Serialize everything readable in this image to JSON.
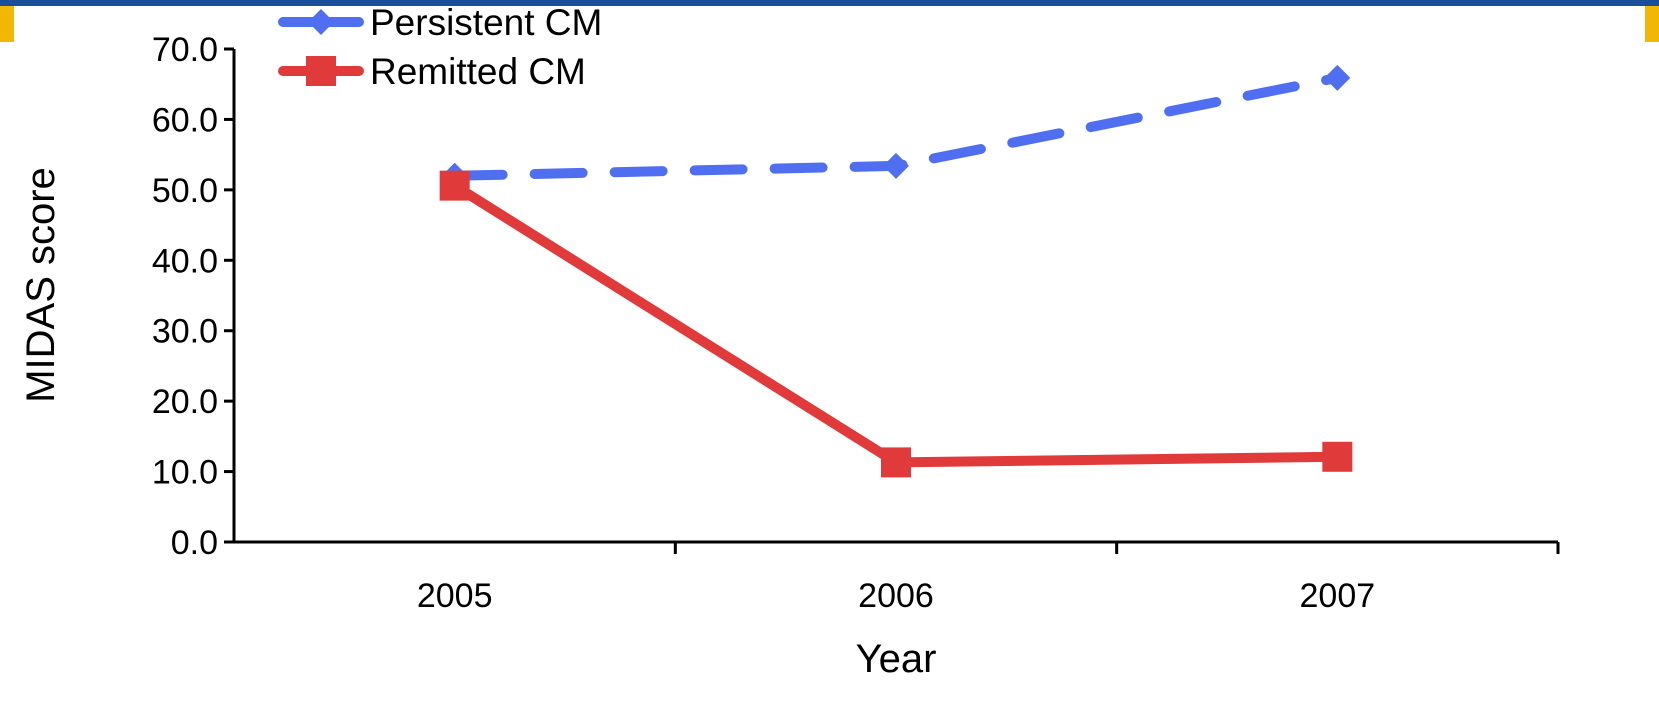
{
  "colors": {
    "top_bar": "#1b4e9a",
    "corner_accent": "#f2b705"
  },
  "chart_data": {
    "type": "line",
    "title": "",
    "xlabel": "Year",
    "ylabel": "MIDAS score",
    "categories": [
      "2005",
      "2006",
      "2007"
    ],
    "ylim": [
      0,
      70
    ],
    "yticks": [
      "0.0",
      "10.0",
      "20.0",
      "30.0",
      "40.0",
      "50.0",
      "60.0",
      "70.0"
    ],
    "grid": false,
    "legend_position": "top-left",
    "series": [
      {
        "name": "Persistent CM",
        "values": [
          52.0,
          53.4,
          65.9
        ],
        "color": "#4f6ff0",
        "dashed": true,
        "marker": "diamond"
      },
      {
        "name": "Remitted CM",
        "values": [
          50.6,
          11.3,
          12.1
        ],
        "color": "#e03a3a",
        "dashed": false,
        "marker": "square"
      }
    ]
  }
}
